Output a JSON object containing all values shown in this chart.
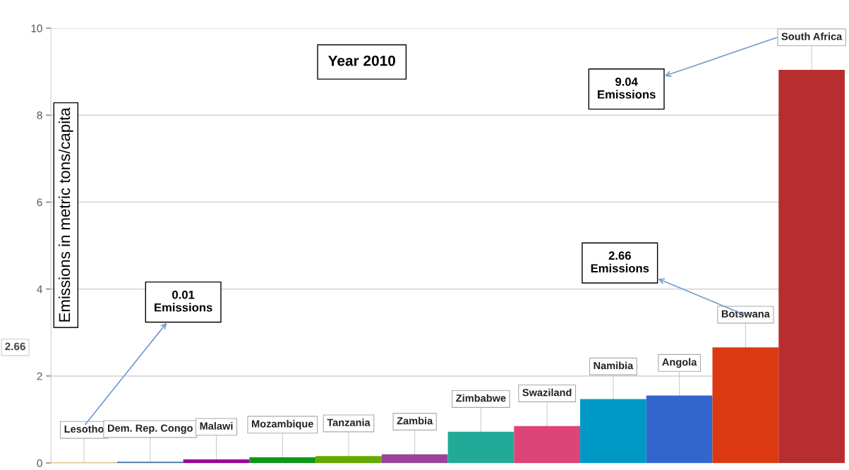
{
  "chart_data": {
    "type": "bar",
    "title": "Year 2010",
    "ylabel": "Emissions in metric tons/capita",
    "categories": [
      "Lesotho",
      "Dem. Rep. Congo",
      "Malawi",
      "Mozambique",
      "Tanzania",
      "Zambia",
      "Zimbabwe",
      "Swaziland",
      "Namibia",
      "Angola",
      "Botswana",
      "South Africa"
    ],
    "values": [
      0.01,
      0.03,
      0.08,
      0.13,
      0.16,
      0.2,
      0.72,
      0.85,
      1.47,
      1.55,
      2.66,
      9.04
    ],
    "colors": [
      "#f0a030",
      "#4a7aa8",
      "#990099",
      "#109618",
      "#66aa00",
      "#994499",
      "#22aa99",
      "#dd4477",
      "#0099c6",
      "#3366cc",
      "#dc3912",
      "#b82e2e"
    ],
    "ylim": [
      0,
      10
    ],
    "yticks": [
      0,
      2,
      4,
      6,
      8,
      10
    ],
    "grid": "y",
    "annotations": [
      "0.01\nEmissions",
      "2.66\nEmissions",
      "9.04\nEmissions",
      "2.66"
    ]
  }
}
